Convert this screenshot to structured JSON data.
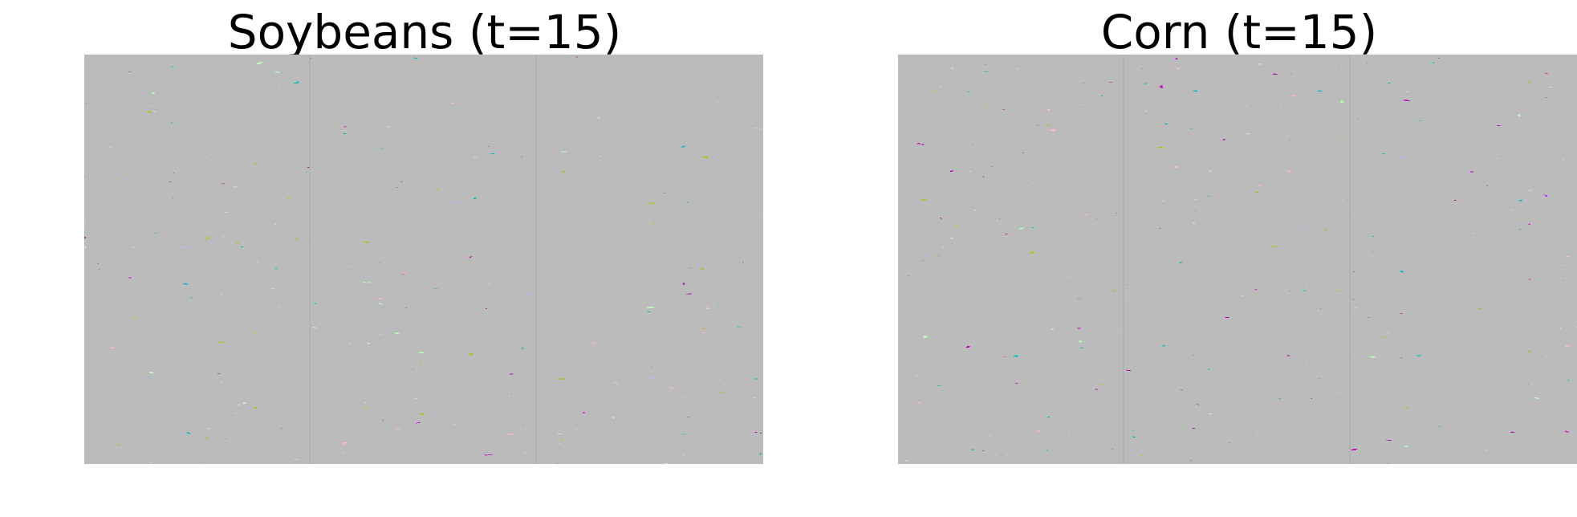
{
  "panels": [
    {
      "title": "Soybeans (t=15)"
    },
    {
      "title": "Corn (t=15)"
    }
  ]
}
